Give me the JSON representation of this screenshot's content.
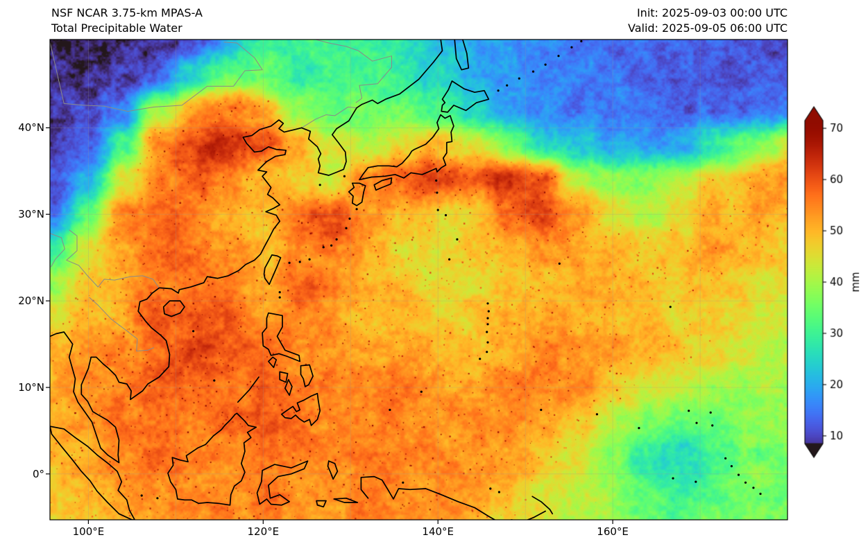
{
  "header": {
    "model": "NSF NCAR 3.75-km MPAS-A",
    "product": "Total Precipitable Water",
    "init": "Init: 2025-09-03 00:00 UTC",
    "valid": "Valid: 2025-09-05 06:00 UTC"
  },
  "axes": {
    "lat_ticks": [
      {
        "label": "40°N",
        "lat": 40
      },
      {
        "label": "30°N",
        "lat": 30
      },
      {
        "label": "20°N",
        "lat": 20
      },
      {
        "label": "10°N",
        "lat": 10
      },
      {
        "label": "0°",
        "lat": 0
      }
    ],
    "lon_ticks": [
      {
        "label": "100°E",
        "lon": 100
      },
      {
        "label": "120°E",
        "lon": 120
      },
      {
        "label": "140°E",
        "lon": 140
      },
      {
        "label": "160°E",
        "lon": 160
      }
    ]
  },
  "colorbar": {
    "units": "mm",
    "ticks": [
      10,
      20,
      30,
      40,
      50,
      60,
      70
    ],
    "top_value": 71.5,
    "bottom_value": 8.5,
    "colormap": "turbo",
    "extend": "both"
  },
  "chart_data": {
    "type": "heatmap",
    "title": "Total Precipitable Water (mm)",
    "model": "NSF NCAR 3.75-km MPAS-A",
    "init_time": "2025-09-03 00:00 UTC",
    "valid_time": "2025-09-05 06:00 UTC",
    "units": "mm",
    "lon_range": [
      95.6,
      180.0
    ],
    "lat_range": [
      -5.3,
      50.2
    ],
    "colormap": "turbo",
    "color_domain": [
      5,
      72
    ],
    "grid_lons": [
      96,
      100,
      104,
      108,
      112,
      116,
      120,
      124,
      128,
      132,
      136,
      140,
      144,
      148,
      152,
      156,
      160,
      164,
      168,
      172,
      176,
      180
    ],
    "grid_lats": [
      50,
      46,
      42,
      38,
      34,
      30,
      26,
      22,
      18,
      14,
      10,
      6,
      2,
      -2,
      -6
    ],
    "values_mm": [
      [
        8,
        8,
        8,
        9,
        12,
        20,
        30,
        30,
        28,
        30,
        26,
        22,
        20,
        18,
        16,
        15,
        14,
        13,
        13,
        12,
        12,
        12
      ],
      [
        8,
        8,
        9,
        12,
        25,
        35,
        32,
        30,
        30,
        32,
        28,
        25,
        22,
        18,
        16,
        15,
        14,
        13,
        12,
        12,
        12,
        12
      ],
      [
        8,
        9,
        15,
        40,
        52,
        56,
        52,
        38,
        33,
        35,
        35,
        30,
        24,
        20,
        18,
        16,
        15,
        14,
        13,
        13,
        14,
        16
      ],
      [
        9,
        12,
        30,
        55,
        62,
        66,
        60,
        50,
        45,
        42,
        45,
        50,
        45,
        35,
        25,
        22,
        20,
        18,
        20,
        28,
        36,
        42
      ],
      [
        10,
        20,
        45,
        55,
        58,
        55,
        50,
        48,
        45,
        55,
        58,
        62,
        58,
        64,
        60,
        42,
        38,
        38,
        42,
        48,
        52,
        54
      ],
      [
        15,
        35,
        55,
        58,
        55,
        52,
        48,
        58,
        60,
        54,
        50,
        47,
        47,
        58,
        62,
        55,
        46,
        42,
        45,
        50,
        52,
        50
      ],
      [
        30,
        45,
        52,
        58,
        55,
        55,
        50,
        55,
        58,
        52,
        48,
        46,
        48,
        50,
        55,
        52,
        50,
        48,
        50,
        52,
        50,
        48
      ],
      [
        40,
        48,
        52,
        56,
        58,
        55,
        52,
        58,
        55,
        50,
        48,
        46,
        46,
        48,
        50,
        52,
        50,
        50,
        50,
        48,
        46,
        45
      ],
      [
        45,
        50,
        52,
        58,
        60,
        58,
        55,
        55,
        52,
        50,
        50,
        48,
        48,
        50,
        52,
        52,
        52,
        50,
        48,
        46,
        45,
        44
      ],
      [
        50,
        52,
        55,
        58,
        60,
        58,
        58,
        55,
        52,
        52,
        52,
        50,
        50,
        52,
        54,
        54,
        52,
        50,
        48,
        46,
        44,
        42
      ],
      [
        52,
        54,
        56,
        58,
        58,
        58,
        58,
        56,
        54,
        54,
        54,
        52,
        52,
        54,
        55,
        54,
        50,
        45,
        42,
        40,
        40,
        40
      ],
      [
        52,
        54,
        56,
        56,
        56,
        58,
        58,
        56,
        55,
        55,
        55,
        54,
        54,
        55,
        54,
        48,
        42,
        38,
        34,
        36,
        40,
        38
      ],
      [
        50,
        52,
        55,
        56,
        56,
        56,
        56,
        56,
        55,
        55,
        56,
        55,
        54,
        52,
        50,
        44,
        38,
        28,
        25,
        32,
        36,
        35
      ],
      [
        48,
        50,
        52,
        54,
        54,
        55,
        55,
        55,
        54,
        54,
        55,
        55,
        52,
        48,
        45,
        42,
        38,
        33,
        30,
        33,
        36,
        36
      ],
      [
        45,
        48,
        50,
        52,
        52,
        54,
        54,
        54,
        54,
        54,
        55,
        54,
        50,
        46,
        44,
        42,
        40,
        36,
        33,
        35,
        38,
        38
      ]
    ]
  }
}
